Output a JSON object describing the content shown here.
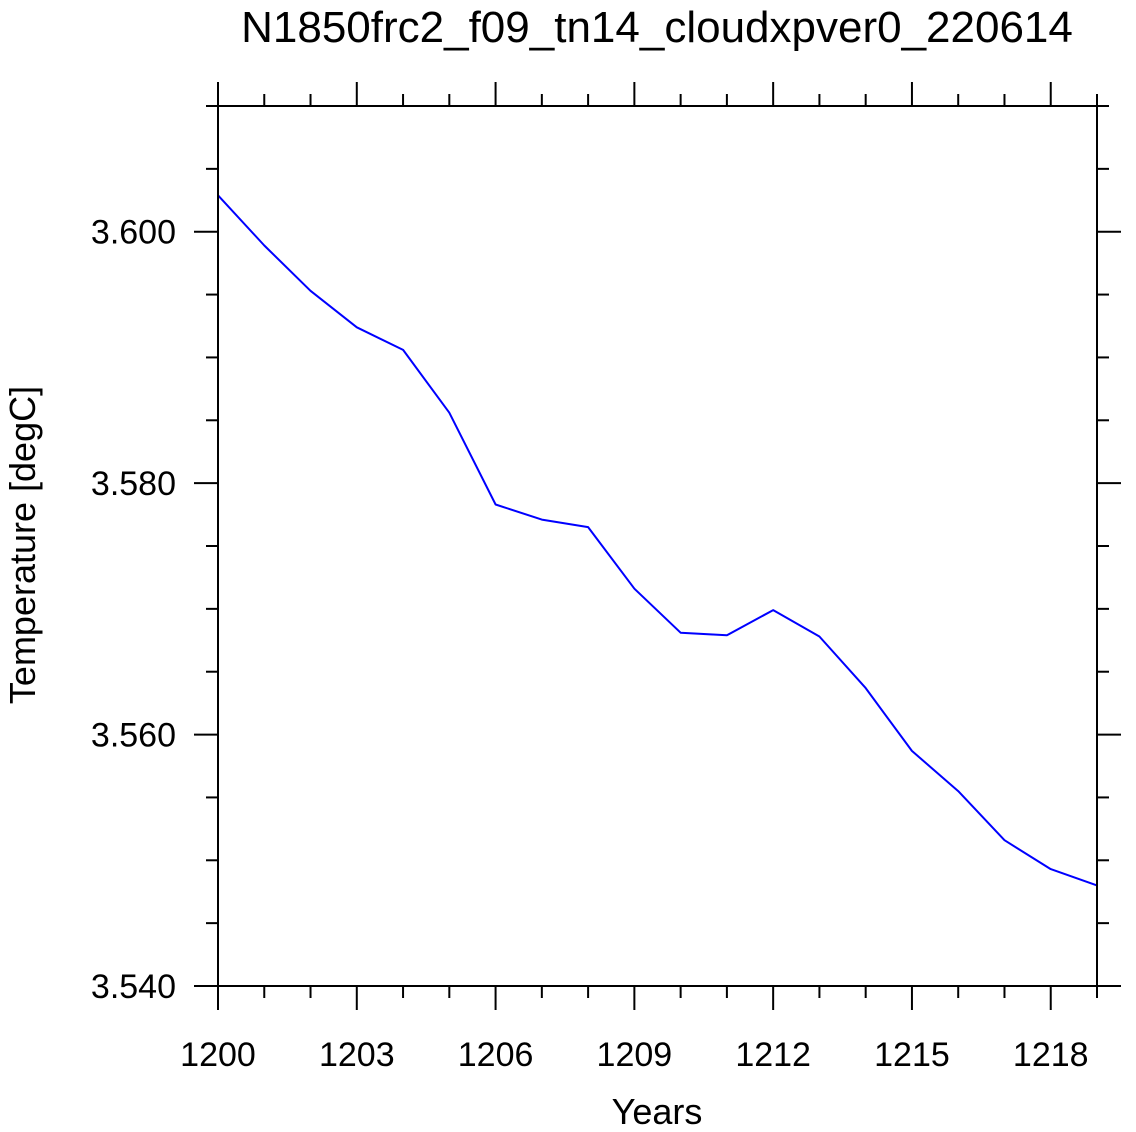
{
  "chart_data": {
    "type": "line",
    "title": "N1850frc2_f09_tn14_cloudxpver0_220614",
    "xlabel": "Years",
    "ylabel": "Temperature [degC]",
    "xlim": [
      1200,
      1219
    ],
    "ylim": [
      3.54,
      3.61
    ],
    "x_ticks": [
      1200,
      1203,
      1206,
      1209,
      1212,
      1215,
      1218
    ],
    "x_tick_labels": [
      "1200",
      "1203",
      "1206",
      "1209",
      "1212",
      "1215",
      "1218"
    ],
    "x_minor_step": 1,
    "y_ticks": [
      3.54,
      3.56,
      3.58,
      3.6
    ],
    "y_tick_labels": [
      "3.540",
      "3.560",
      "3.580",
      "3.600"
    ],
    "y_minor_step": 0.005,
    "grid": false,
    "series": [
      {
        "color": "#0000ff",
        "x": [
          1200,
          1201,
          1202,
          1203,
          1204,
          1205,
          1206,
          1207,
          1208,
          1209,
          1210,
          1211,
          1212,
          1213,
          1214,
          1215,
          1216,
          1217,
          1218,
          1219
        ],
        "values": [
          3.6029,
          3.5989,
          3.5953,
          3.5924,
          3.5906,
          3.5856,
          3.5783,
          3.5771,
          3.5765,
          3.5716,
          3.5681,
          3.5679,
          3.5699,
          3.5678,
          3.5637,
          3.5587,
          3.5555,
          3.5516,
          3.5493,
          3.548
        ]
      }
    ]
  }
}
